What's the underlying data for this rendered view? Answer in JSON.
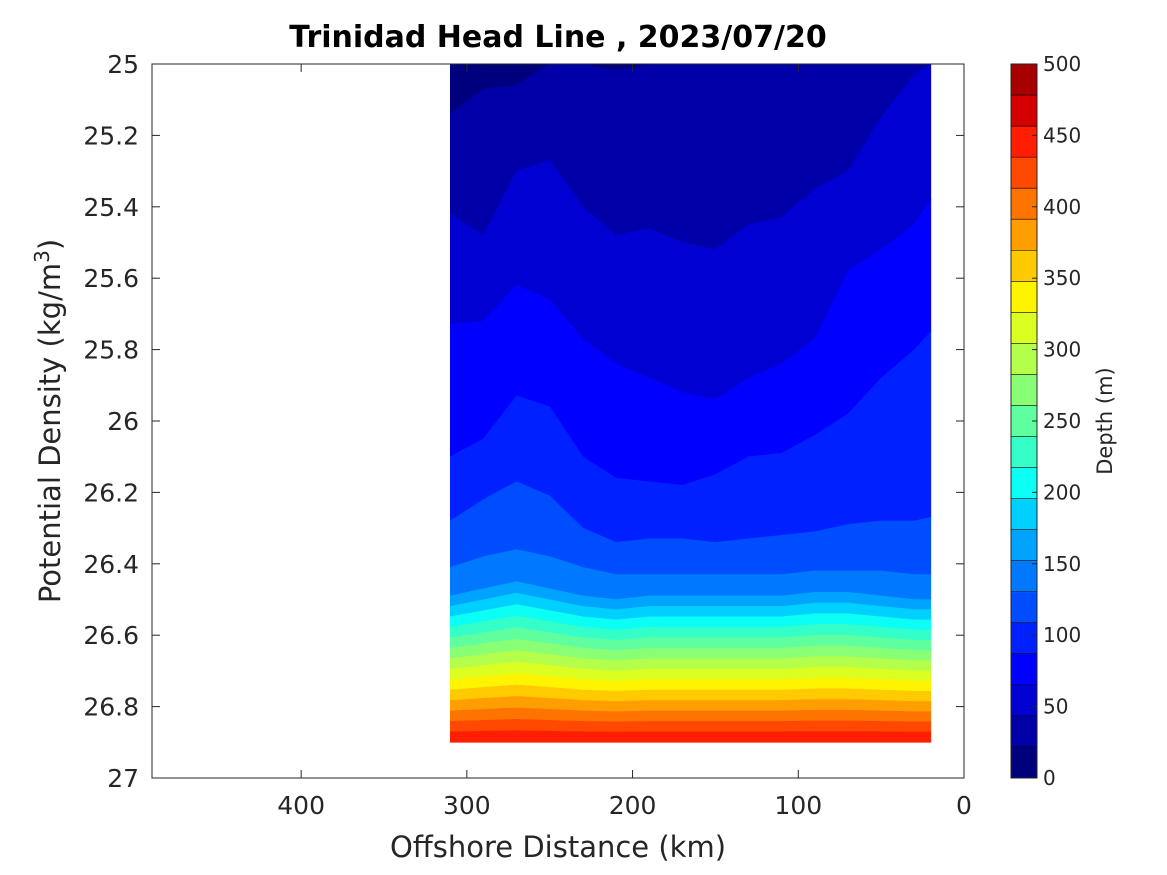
{
  "chart_data": {
    "type": "contour",
    "title": "Trinidad Head Line , 2023/07/20",
    "xlabel": "Offshore Distance (km)",
    "ylabel_main": "Potential Density (kg/m",
    "ylabel_sup": "3",
    "ylabel_close": ")",
    "xlim": [
      490,
      0
    ],
    "x_reversed": true,
    "xticks": [
      400,
      300,
      200,
      100,
      0
    ],
    "xtick_labels": [
      "400",
      "300",
      "200",
      "100",
      "0"
    ],
    "ylim": [
      25,
      27
    ],
    "y_reversed": true,
    "yticks": [
      25,
      25.2,
      25.4,
      25.6,
      25.8,
      26,
      26.2,
      26.4,
      26.6,
      26.8,
      27
    ],
    "ytick_labels": [
      "25",
      "25.2",
      "25.4",
      "25.6",
      "25.8",
      "26",
      "26.2",
      "26.4",
      "26.6",
      "26.8",
      "27"
    ],
    "colorbar": {
      "label": "Depth (m)",
      "min": 0,
      "max": 500,
      "step": 25,
      "tick_values": [
        0,
        50,
        100,
        150,
        200,
        250,
        300,
        350,
        400,
        450,
        500
      ],
      "tick_labels": [
        "0",
        "50",
        "100",
        "150",
        "200",
        "250",
        "300",
        "350",
        "400",
        "450",
        "500"
      ],
      "colors": [
        "#00007f",
        "#0000a8",
        "#0000d3",
        "#0000ff",
        "#0020ff",
        "#004cff",
        "#0078ff",
        "#00a4ff",
        "#00d0ff",
        "#0cfff4",
        "#35ffc9",
        "#5fff9f",
        "#89ff76",
        "#b3ff4c",
        "#dcff22",
        "#fff400",
        "#ffca00",
        "#ff9e00",
        "#ff7400",
        "#ff4800",
        "#ff1e00",
        "#d40000",
        "#a80000"
      ]
    },
    "stations_x": [
      310,
      290,
      270,
      250,
      230,
      210,
      190,
      170,
      150,
      130,
      110,
      90,
      70,
      50,
      30,
      20
    ],
    "data_x_extent": [
      20,
      310
    ],
    "data_y_extent": [
      25,
      26.9
    ],
    "contours": [
      {
        "depth": 25,
        "y": [
          25.14,
          25.07,
          25.06,
          25.0,
          25.0,
          25.02,
          25.0,
          25.0,
          25.0,
          24.99,
          24.98,
          24.97,
          24.96,
          24.95,
          24.94,
          24.94
        ]
      },
      {
        "depth": 50,
        "y": [
          25.42,
          25.48,
          25.3,
          25.27,
          25.4,
          25.48,
          25.46,
          25.5,
          25.52,
          25.45,
          25.43,
          25.35,
          25.3,
          25.15,
          25.03,
          25.0
        ]
      },
      {
        "depth": 75,
        "y": [
          25.73,
          25.72,
          25.62,
          25.66,
          25.77,
          25.84,
          25.88,
          25.92,
          25.94,
          25.88,
          25.84,
          25.77,
          25.58,
          25.52,
          25.45,
          25.38
        ]
      },
      {
        "depth": 100,
        "y": [
          26.1,
          26.05,
          25.93,
          25.96,
          26.1,
          26.16,
          26.17,
          26.18,
          26.15,
          26.1,
          26.09,
          26.04,
          25.98,
          25.88,
          25.8,
          25.75
        ]
      },
      {
        "depth": 125,
        "y": [
          26.28,
          26.22,
          26.17,
          26.21,
          26.3,
          26.34,
          26.33,
          26.33,
          26.34,
          26.33,
          26.32,
          26.31,
          26.29,
          26.28,
          26.28,
          26.27
        ]
      },
      {
        "depth": 150,
        "y": [
          26.41,
          26.38,
          26.36,
          26.38,
          26.41,
          26.43,
          26.43,
          26.43,
          26.43,
          26.43,
          26.43,
          26.42,
          26.42,
          26.42,
          26.43,
          26.43
        ]
      },
      {
        "depth": 175,
        "y": [
          26.49,
          26.47,
          26.45,
          26.47,
          26.49,
          26.5,
          26.49,
          26.49,
          26.49,
          26.49,
          26.49,
          26.48,
          26.48,
          26.49,
          26.5,
          26.5
        ]
      }
    ]
  }
}
